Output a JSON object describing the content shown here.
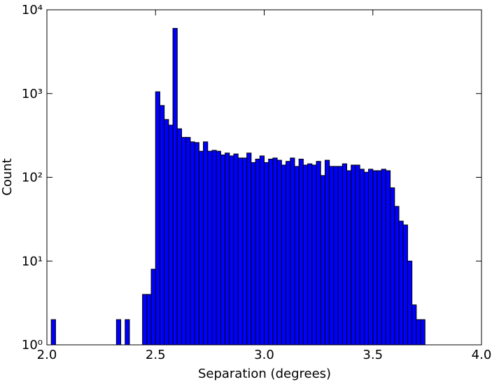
{
  "chart_data": {
    "type": "histogram",
    "xlabel": "Separation (degrees)",
    "ylabel": "Count",
    "bins": [
      2.02,
      2.04,
      2.06,
      2.08,
      2.1,
      2.12,
      2.14,
      2.16,
      2.18,
      2.2,
      2.22,
      2.24,
      2.26,
      2.28,
      2.3,
      2.32,
      2.34,
      2.36,
      2.38,
      2.4,
      2.42,
      2.44,
      2.46,
      2.48,
      2.5,
      2.52,
      2.54,
      2.56,
      2.58,
      2.6,
      2.62,
      2.64,
      2.66,
      2.68,
      2.7,
      2.72,
      2.74,
      2.76,
      2.78,
      2.8,
      2.82,
      2.84,
      2.86,
      2.88,
      2.9,
      2.92,
      2.94,
      2.96,
      2.98,
      3.0,
      3.02,
      3.04,
      3.06,
      3.08,
      3.1,
      3.12,
      3.14,
      3.16,
      3.18,
      3.2,
      3.22,
      3.24,
      3.26,
      3.28,
      3.3,
      3.32,
      3.34,
      3.36,
      3.38,
      3.4,
      3.42,
      3.44,
      3.46,
      3.48,
      3.5,
      3.52,
      3.54,
      3.56,
      3.58,
      3.6,
      3.62,
      3.64,
      3.66,
      3.68,
      3.7,
      3.72,
      3.74
    ],
    "counts": [
      2,
      0,
      0,
      0,
      0,
      0,
      0,
      0,
      0,
      0,
      0,
      0,
      0,
      0,
      0,
      2,
      0,
      2,
      0,
      0,
      0,
      4,
      4,
      8,
      1050,
      720,
      490,
      420,
      6000,
      380,
      300,
      300,
      265,
      260,
      205,
      265,
      205,
      210,
      205,
      185,
      195,
      180,
      190,
      170,
      170,
      195,
      150,
      165,
      180,
      150,
      165,
      170,
      160,
      140,
      155,
      170,
      135,
      165,
      140,
      145,
      140,
      155,
      105,
      160,
      135,
      135,
      135,
      145,
      120,
      140,
      140,
      125,
      115,
      125,
      120,
      120,
      125,
      120,
      75,
      45,
      30,
      27,
      10,
      3,
      2,
      2
    ],
    "color": "#0000ff",
    "xlim": [
      2,
      4
    ],
    "xticks": [
      {
        "value": 2,
        "label": "2.0"
      },
      2.5,
      {
        "value": 3,
        "label": "3.0"
      },
      3.5,
      {
        "value": 4,
        "label": "4.0"
      }
    ],
    "ylim": [
      1,
      10000
    ],
    "log_y": true,
    "yticks": [
      {
        "value": 1,
        "label": "10⁰"
      },
      {
        "value": 10,
        "label": "10¹"
      },
      {
        "value": 100,
        "label": "10²"
      },
      {
        "value": 1000,
        "label": "10³"
      },
      {
        "value": 10000,
        "label": "10⁴"
      }
    ]
  }
}
